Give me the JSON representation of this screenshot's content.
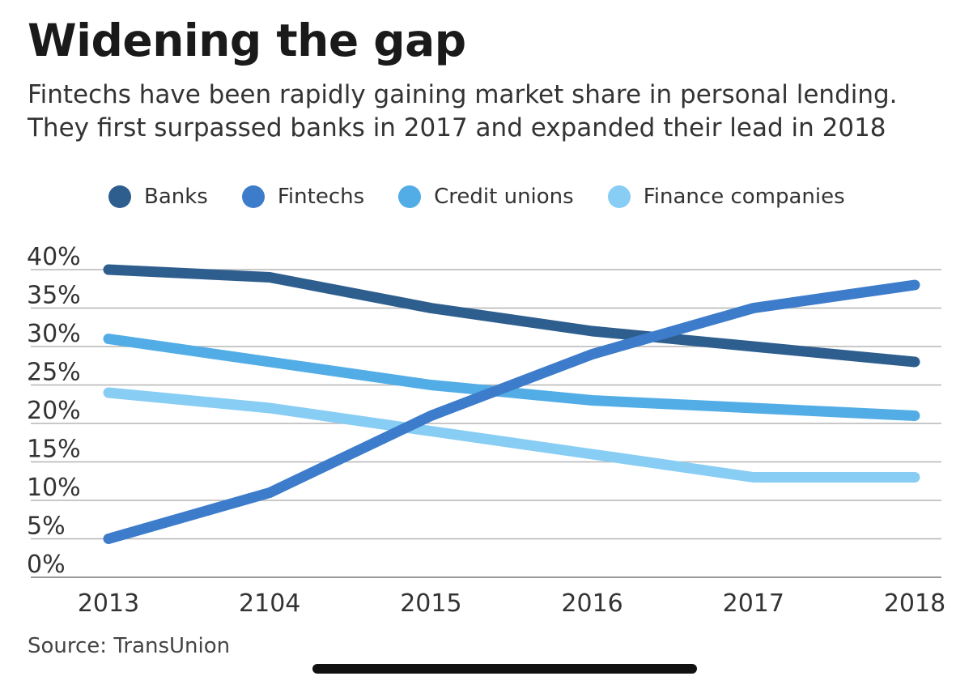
{
  "chart_data": {
    "type": "line",
    "title": "Widening the gap",
    "subtitle": "Fintechs have been rapidly gaining market share in personal lending. They first surpassed banks in 2017 and expanded their lead in 2018",
    "categories": [
      "2013",
      "2104",
      "2015",
      "2016",
      "2017",
      "2018"
    ],
    "y_ticks": [
      "40%",
      "35%",
      "30%",
      "25%",
      "20%",
      "15%",
      "10%",
      "5%",
      "0%"
    ],
    "ylim": [
      0,
      40
    ],
    "grid": true,
    "legend_position": "top",
    "series": [
      {
        "name": "Banks",
        "color": "#2e5e8e",
        "values": [
          40,
          39,
          35,
          32,
          30,
          28
        ]
      },
      {
        "name": "Fintechs",
        "color": "#3c7ccb",
        "values": [
          5,
          11,
          21,
          29,
          35,
          38
        ]
      },
      {
        "name": "Credit unions",
        "color": "#52ade6",
        "values": [
          31,
          28,
          25,
          23,
          22,
          21
        ]
      },
      {
        "name": "Finance companies",
        "color": "#88cdf4",
        "values": [
          24,
          22,
          19,
          16,
          13,
          13
        ]
      }
    ],
    "source": "Source: TransUnion"
  }
}
